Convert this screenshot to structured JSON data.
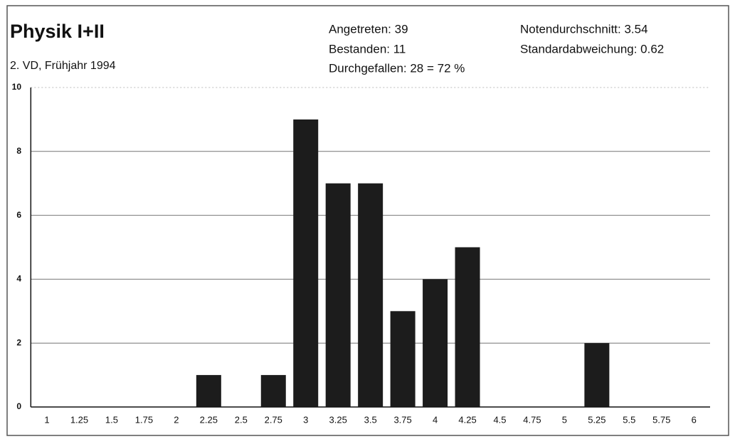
{
  "chart_data": {
    "type": "bar",
    "title": "Physik I+II",
    "subtitle": "2. VD, Frühjahr 1994",
    "annotations": [
      "Angetreten: 39",
      "Bestanden: 11",
      "Durchgefallen: 28 = 72 %",
      "Notendurchschnitt: 3.54",
      "Standardabweichung: 0.62"
    ],
    "categories": [
      "1",
      "1.25",
      "1.5",
      "1.75",
      "2",
      "2.25",
      "2.5",
      "2.75",
      "3",
      "3.25",
      "3.5",
      "3.75",
      "4",
      "4.25",
      "4.5",
      "4.75",
      "5",
      "5.25",
      "5.5",
      "5.75",
      "6"
    ],
    "values": [
      0,
      0,
      0,
      0,
      0,
      1,
      0,
      1,
      9,
      7,
      7,
      3,
      4,
      5,
      0,
      0,
      0,
      2,
      0,
      0,
      0
    ],
    "color": "#1c1c1c",
    "ylim": [
      0,
      10
    ],
    "yticks": [
      0,
      2,
      4,
      6,
      8,
      10
    ],
    "grid": true
  }
}
